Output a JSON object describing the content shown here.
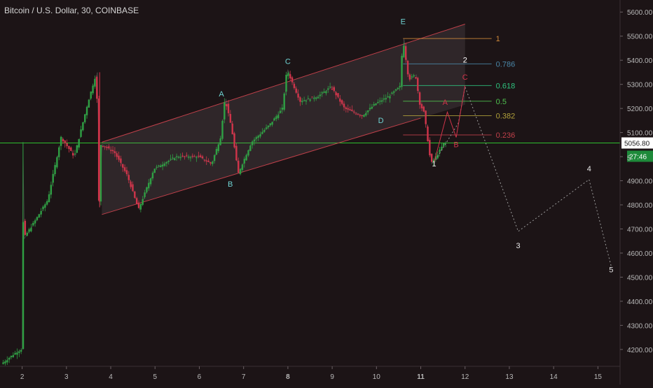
{
  "header": {
    "title": "Bitcoin / U.S. Dollar, 30, COINBASE"
  },
  "price_axis": {
    "ticks": [
      "5600.00",
      "5500.00",
      "5400.00",
      "5300.00",
      "5200.00",
      "5100.00",
      "5000.00",
      "4900.00",
      "4800.00",
      "4700.00",
      "4600.00",
      "4500.00",
      "4400.00",
      "4300.00",
      "4200.00"
    ],
    "current_price_label": "5056.80",
    "countdown_label": "27:46",
    "partial_label": "5"
  },
  "time_axis": {
    "ticks": [
      "2",
      "3",
      "4",
      "5",
      "6",
      "7",
      "8",
      "9",
      "10",
      "11",
      "12",
      "13",
      "14",
      "15"
    ]
  },
  "colors": {
    "background": "#1c1416",
    "up_candle": "#2ea043",
    "down_candle": "#d0344a",
    "channel": "#c0404a",
    "wave_label": "#6fd3d3",
    "projection": "#9a9a9a",
    "price_line": "#2ec02e"
  },
  "chart_data": {
    "type": "candlestick",
    "title": "Bitcoin / U.S. Dollar, 30, COINBASE",
    "xlabel": "",
    "ylabel": "",
    "xlim": [
      1.5,
      15.5
    ],
    "ylim": [
      4130,
      5650
    ],
    "current_price": 5056.8,
    "price_path": [
      [
        1.55,
        4140
      ],
      [
        1.9,
        4190
      ],
      [
        2.0,
        4200
      ],
      [
        2.02,
        5060
      ],
      [
        2.05,
        4660
      ],
      [
        2.3,
        4730
      ],
      [
        2.6,
        4820
      ],
      [
        2.9,
        5080
      ],
      [
        3.2,
        5000
      ],
      [
        3.5,
        5220
      ],
      [
        3.7,
        5350
      ],
      [
        3.75,
        4790
      ],
      [
        3.8,
        5050
      ],
      [
        4.1,
        5020
      ],
      [
        4.4,
        4920
      ],
      [
        4.65,
        4780
      ],
      [
        5.0,
        4950
      ],
      [
        5.5,
        5000
      ],
      [
        6.0,
        5000
      ],
      [
        6.3,
        4970
      ],
      [
        6.5,
        5080
      ],
      [
        6.6,
        5240
      ],
      [
        6.75,
        5120
      ],
      [
        6.9,
        4930
      ],
      [
        7.2,
        5060
      ],
      [
        7.6,
        5130
      ],
      [
        7.9,
        5200
      ],
      [
        8.0,
        5360
      ],
      [
        8.3,
        5230
      ],
      [
        8.7,
        5250
      ],
      [
        9.0,
        5290
      ],
      [
        9.3,
        5200
      ],
      [
        9.7,
        5170
      ],
      [
        10.0,
        5220
      ],
      [
        10.3,
        5250
      ],
      [
        10.55,
        5290
      ],
      [
        10.62,
        5490
      ],
      [
        10.75,
        5320
      ],
      [
        10.9,
        5340
      ],
      [
        11.0,
        5220
      ],
      [
        11.1,
        5180
      ],
      [
        11.25,
        4970
      ],
      [
        11.4,
        5010
      ],
      [
        11.55,
        5056.8
      ]
    ],
    "channel": {
      "upper": [
        [
          3.8,
          5060
        ],
        [
          12.0,
          5550
        ]
      ],
      "lower": [
        [
          3.8,
          4760
        ],
        [
          11.0,
          5160
        ]
      ]
    },
    "fibonacci": [
      {
        "level": "1",
        "price": 5490,
        "color": "#d08a3a"
      },
      {
        "level": "0.786",
        "price": 5385,
        "color": "#4a87a8"
      },
      {
        "level": "0.618",
        "price": 5295,
        "color": "#2ec27e"
      },
      {
        "level": "0.5",
        "price": 5230,
        "color": "#4fc24f"
      },
      {
        "level": "0.382",
        "price": 5170,
        "color": "#b0a03a"
      },
      {
        "level": "0.236",
        "price": 5090,
        "color": "#c0404a"
      }
    ],
    "wave_labels": [
      {
        "text": "A",
        "x": 6.5,
        "y": 5250,
        "color": "#6fd3d3"
      },
      {
        "text": "B",
        "x": 6.7,
        "y": 4875,
        "color": "#6fd3d3"
      },
      {
        "text": "C",
        "x": 8.0,
        "y": 5385,
        "color": "#6fd3d3"
      },
      {
        "text": "D",
        "x": 10.1,
        "y": 5140,
        "color": "#6fd3d3"
      },
      {
        "text": "E",
        "x": 10.6,
        "y": 5550,
        "color": "#6fd3d3"
      },
      {
        "text": "1",
        "x": 11.3,
        "y": 4960,
        "color": "#e8e8e8"
      },
      {
        "text": "2",
        "x": 12.0,
        "y": 5390,
        "color": "#ffffff"
      },
      {
        "text": "A",
        "x": 11.55,
        "y": 5215,
        "color": "#d0344a"
      },
      {
        "text": "B",
        "x": 11.8,
        "y": 5040,
        "color": "#d0344a"
      },
      {
        "text": "C",
        "x": 12.0,
        "y": 5320,
        "color": "#d0344a"
      },
      {
        "text": "3",
        "x": 13.2,
        "y": 4620,
        "color": "#e8e8e8"
      },
      {
        "text": "4",
        "x": 14.8,
        "y": 4940,
        "color": "#e8e8e8"
      },
      {
        "text": "5",
        "x": 15.3,
        "y": 4520,
        "color": "#e8e8e8"
      }
    ],
    "projection_path": [
      [
        11.3,
        4975
      ],
      [
        11.85,
        5140
      ],
      [
        12.0,
        5290
      ],
      [
        13.2,
        4690
      ],
      [
        14.8,
        4905
      ],
      [
        15.3,
        4545
      ]
    ],
    "correction_path": [
      [
        11.3,
        4975
      ],
      [
        11.6,
        5185
      ],
      [
        11.8,
        5080
      ],
      [
        12.0,
        5295
      ]
    ]
  }
}
